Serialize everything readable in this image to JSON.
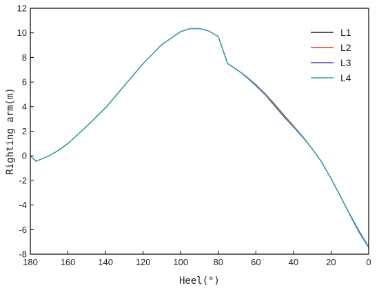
{
  "chart_data": {
    "type": "line",
    "title": "",
    "xlabel": "Heel(°)",
    "ylabel": "Righting arm(m)",
    "xlim": [
      180,
      0
    ],
    "ylim": [
      -8,
      12
    ],
    "xticks": [
      180,
      160,
      140,
      120,
      100,
      80,
      60,
      40,
      20,
      0
    ],
    "yticks": [
      -8,
      -6,
      -4,
      -2,
      0,
      2,
      4,
      6,
      8,
      10,
      12
    ],
    "grid": false,
    "legend_position": "top-right",
    "series": [
      {
        "name": "L1",
        "color": "#1a1a1a",
        "x": [
          180,
          177,
          170,
          165,
          160,
          150,
          140,
          130,
          120,
          110,
          100,
          95,
          90,
          85,
          80,
          75,
          70,
          65,
          60,
          55,
          50,
          45,
          40,
          35,
          30,
          25,
          20,
          15,
          10,
          5,
          0
        ],
        "y": [
          0,
          -0.45,
          0.0,
          0.45,
          1.0,
          2.4,
          3.9,
          5.7,
          7.5,
          9.05,
          10.1,
          10.35,
          10.35,
          10.15,
          9.7,
          7.5,
          7.0,
          6.45,
          5.75,
          5.0,
          4.1,
          3.2,
          2.4,
          1.55,
          0.55,
          -0.5,
          -1.85,
          -3.3,
          -4.8,
          -6.25,
          -7.45
        ]
      },
      {
        "name": "L2",
        "color": "#e8312e",
        "x": [
          180,
          177,
          170,
          165,
          160,
          150,
          140,
          130,
          120,
          110,
          100,
          95,
          90,
          85,
          80,
          75,
          70,
          65,
          60,
          55,
          50,
          45,
          40,
          35,
          30,
          25,
          20,
          15,
          10,
          5,
          0
        ],
        "y": [
          0,
          -0.45,
          0.0,
          0.45,
          1.0,
          2.4,
          3.9,
          5.7,
          7.5,
          9.05,
          10.1,
          10.35,
          10.35,
          10.15,
          9.7,
          7.5,
          7.0,
          6.45,
          5.8,
          5.05,
          4.2,
          3.3,
          2.45,
          1.55,
          0.55,
          -0.5,
          -1.85,
          -3.3,
          -4.8,
          -6.25,
          -7.45
        ]
      },
      {
        "name": "L3",
        "color": "#4a4ab8",
        "x": [
          180,
          177,
          170,
          165,
          160,
          150,
          140,
          130,
          120,
          110,
          100,
          95,
          90,
          85,
          80,
          75,
          70,
          65,
          60,
          55,
          50,
          45,
          40,
          35,
          30,
          25,
          20,
          15,
          10,
          5,
          0
        ],
        "y": [
          0,
          -0.45,
          0.0,
          0.45,
          1.0,
          2.4,
          3.9,
          5.7,
          7.5,
          9.05,
          10.1,
          10.35,
          10.35,
          10.15,
          9.7,
          7.5,
          7.0,
          6.4,
          5.7,
          4.95,
          4.05,
          3.15,
          2.35,
          1.5,
          0.55,
          -0.5,
          -1.85,
          -3.3,
          -4.75,
          -6.15,
          -7.4
        ]
      },
      {
        "name": "L4",
        "color": "#2aa8b0",
        "x": [
          180,
          177,
          170,
          165,
          160,
          150,
          140,
          130,
          120,
          110,
          100,
          95,
          90,
          85,
          80,
          75,
          70,
          65,
          60,
          55,
          50,
          45,
          40,
          35,
          30,
          25,
          20,
          15,
          10,
          5,
          0
        ],
        "y": [
          0,
          -0.45,
          0.0,
          0.45,
          1.0,
          2.4,
          3.9,
          5.7,
          7.5,
          9.05,
          10.1,
          10.35,
          10.35,
          10.15,
          9.7,
          7.5,
          7.0,
          6.45,
          5.75,
          5.0,
          4.1,
          3.2,
          2.4,
          1.55,
          0.55,
          -0.5,
          -1.85,
          -3.3,
          -4.8,
          -6.25,
          -7.45
        ]
      }
    ]
  }
}
